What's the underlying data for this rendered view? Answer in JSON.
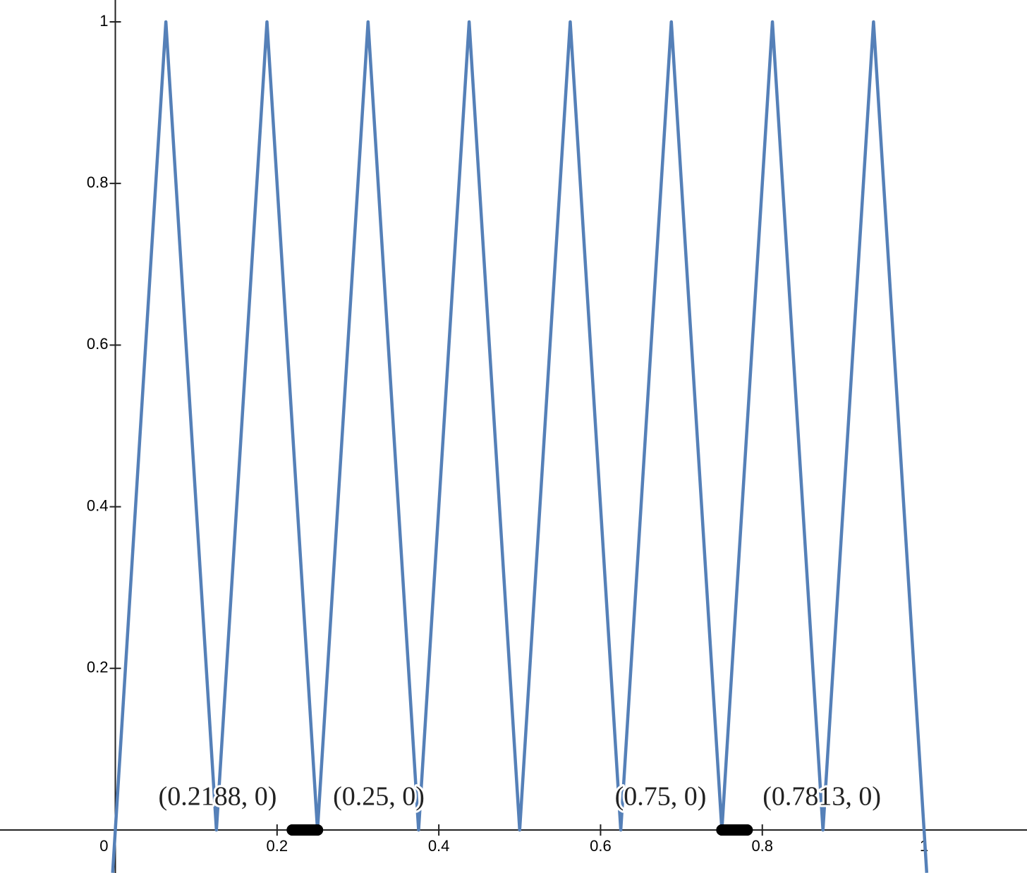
{
  "chart_data": {
    "type": "line",
    "xlim": [
      -0.1426,
      1.1273
    ],
    "ylim": [
      -0.0532,
      1.027
    ],
    "xticks": [
      0,
      0.2,
      0.4,
      0.6,
      0.8,
      1
    ],
    "yticks": [
      0.2,
      0.4,
      0.6,
      0.8,
      1
    ],
    "x": [
      -0.0033,
      0,
      0.0625,
      0.125,
      0.1875,
      0.25,
      0.3125,
      0.375,
      0.4375,
      0.5,
      0.5625,
      0.625,
      0.6875,
      0.75,
      0.8125,
      0.875,
      0.9375,
      1,
      1.0033
    ],
    "series": [
      {
        "color": "#5580b8",
        "values": [
          -0.053,
          0,
          1,
          0,
          1,
          0,
          1,
          0,
          1,
          0,
          1,
          0,
          1,
          0,
          1,
          0,
          1,
          0,
          -0.053
        ]
      }
    ],
    "points": [
      {
        "x": 0.2188,
        "y": 0,
        "label": "(0.2188, 0)"
      },
      {
        "x": 0.25,
        "y": 0,
        "label": "(0.25, 0)"
      },
      {
        "x": 0.75,
        "y": 0,
        "label": "(0.75, 0)"
      },
      {
        "x": 0.7813,
        "y": 0,
        "label": "(0.7813, 0)"
      }
    ],
    "intervals": [
      [
        0.2188,
        0.25
      ],
      [
        0.75,
        0.7813
      ]
    ],
    "point_color": "#000000"
  }
}
